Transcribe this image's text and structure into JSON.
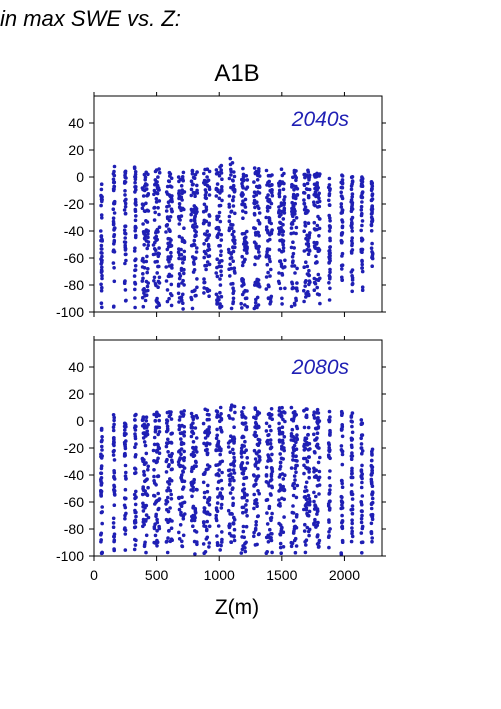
{
  "header": {
    "text": "in max SWE vs. Z:"
  },
  "scenario_title": "A1B",
  "colors": {
    "points": "#1f1fb4",
    "axis": "#000000"
  },
  "chart_data": [
    {
      "type": "scatter",
      "panel_label": "2040s",
      "xlim": [
        0,
        2300
      ],
      "ylim": [
        -100,
        60
      ],
      "xticks": [
        0,
        500,
        1000,
        1500,
        2000
      ],
      "yticks": [
        40,
        20,
        0,
        -20,
        -40,
        -60,
        -80,
        -100
      ],
      "xlabel": "",
      "ylabel": "",
      "x_tick_labels_shown": false,
      "clusters": [
        {
          "x": 60,
          "ymin": -98,
          "ymax": -5
        },
        {
          "x": 160,
          "ymin": -98,
          "ymax": 8
        },
        {
          "x": 250,
          "ymin": -98,
          "ymax": 5
        },
        {
          "x": 330,
          "ymin": -98,
          "ymax": 8
        },
        {
          "x": 410,
          "ymin": -98,
          "ymax": 5
        },
        {
          "x": 500,
          "ymin": -98,
          "ymax": 6
        },
        {
          "x": 600,
          "ymin": -98,
          "ymax": 6
        },
        {
          "x": 700,
          "ymin": -98,
          "ymax": 7
        },
        {
          "x": 800,
          "ymin": -98,
          "ymax": 7
        },
        {
          "x": 900,
          "ymin": -98,
          "ymax": 9
        },
        {
          "x": 1000,
          "ymin": -98,
          "ymax": 10
        },
        {
          "x": 1100,
          "ymin": -98,
          "ymax": 14
        },
        {
          "x": 1200,
          "ymin": -98,
          "ymax": 9
        },
        {
          "x": 1300,
          "ymin": -98,
          "ymax": 7
        },
        {
          "x": 1400,
          "ymin": -98,
          "ymax": 6
        },
        {
          "x": 1500,
          "ymin": -98,
          "ymax": 6
        },
        {
          "x": 1600,
          "ymin": -97,
          "ymax": 5
        },
        {
          "x": 1700,
          "ymin": -95,
          "ymax": 5
        },
        {
          "x": 1780,
          "ymin": -95,
          "ymax": 3
        },
        {
          "x": 1880,
          "ymin": -92,
          "ymax": 3
        },
        {
          "x": 1980,
          "ymin": -90,
          "ymax": 3
        },
        {
          "x": 2060,
          "ymin": -88,
          "ymax": 3
        },
        {
          "x": 2140,
          "ymin": -85,
          "ymax": 3
        },
        {
          "x": 2220,
          "ymin": -72,
          "ymax": -3
        }
      ]
    },
    {
      "type": "scatter",
      "panel_label": "2080s",
      "xlim": [
        0,
        2300
      ],
      "ylim": [
        -100,
        60
      ],
      "xticks": [
        0,
        500,
        1000,
        1500,
        2000
      ],
      "yticks": [
        40,
        20,
        0,
        -20,
        -40,
        -60,
        -80,
        -100
      ],
      "x_tick_labels": [
        "0",
        "500",
        "1000",
        "1500",
        "2000"
      ],
      "xlabel": "Z(m)",
      "ylabel": "",
      "x_tick_labels_shown": true,
      "clusters": [
        {
          "x": 60,
          "ymin": -99,
          "ymax": -5
        },
        {
          "x": 160,
          "ymin": -99,
          "ymax": 5
        },
        {
          "x": 250,
          "ymin": -99,
          "ymax": 3
        },
        {
          "x": 330,
          "ymin": -99,
          "ymax": 5
        },
        {
          "x": 410,
          "ymin": -99,
          "ymax": 6
        },
        {
          "x": 500,
          "ymin": -99,
          "ymax": 7
        },
        {
          "x": 600,
          "ymin": -99,
          "ymax": 7
        },
        {
          "x": 700,
          "ymin": -99,
          "ymax": 8
        },
        {
          "x": 800,
          "ymin": -99,
          "ymax": 8
        },
        {
          "x": 900,
          "ymin": -99,
          "ymax": 9
        },
        {
          "x": 1000,
          "ymin": -99,
          "ymax": 10
        },
        {
          "x": 1100,
          "ymin": -99,
          "ymax": 12
        },
        {
          "x": 1200,
          "ymin": -99,
          "ymax": 15
        },
        {
          "x": 1300,
          "ymin": -99,
          "ymax": 11
        },
        {
          "x": 1400,
          "ymin": -99,
          "ymax": 10
        },
        {
          "x": 1500,
          "ymin": -99,
          "ymax": 10
        },
        {
          "x": 1600,
          "ymin": -99,
          "ymax": 10
        },
        {
          "x": 1700,
          "ymin": -99,
          "ymax": 9
        },
        {
          "x": 1780,
          "ymin": -99,
          "ymax": 9
        },
        {
          "x": 1880,
          "ymin": -99,
          "ymax": 8
        },
        {
          "x": 1980,
          "ymin": -99,
          "ymax": 7
        },
        {
          "x": 2060,
          "ymin": -99,
          "ymax": 8
        },
        {
          "x": 2140,
          "ymin": -99,
          "ymax": 1
        },
        {
          "x": 2220,
          "ymin": -95,
          "ymax": -20
        }
      ]
    }
  ]
}
